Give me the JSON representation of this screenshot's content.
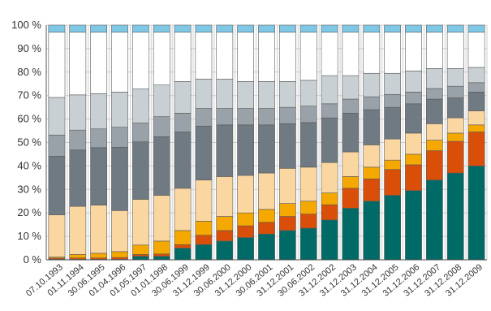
{
  "chart_data": {
    "type": "bar",
    "stacked": true,
    "ylim": [
      0,
      100
    ],
    "y_ticks": [
      "0 %",
      "10 %",
      "20 %",
      "30 %",
      "40 %",
      "50 %",
      "60 %",
      "70 %",
      "80 %",
      "90 %",
      "100 %"
    ],
    "grid": true,
    "categories": [
      "07.10.1993",
      "01.11.1994",
      "30.06.1995",
      "01.04.1996",
      "01.05.1997",
      "01.01.1998",
      "30.06.1999",
      "31.12.1999",
      "30.06.2000",
      "31.12.2000",
      "30.06.2001",
      "31.12.2001",
      "30.06.2002",
      "31.12.2002",
      "31.12.2003",
      "31.12.2004",
      "31.12.2005",
      "31.12.2006",
      "31.12.2007",
      "31.12.2008",
      "31.12.2009"
    ],
    "colors": [
      "#006b66",
      "#d94f0a",
      "#f5a800",
      "#fad7a0",
      "#707a82",
      "#9aa2a9",
      "#c9d0d4",
      "#ffffff",
      "#7ec8e6"
    ],
    "series": [
      {
        "values": [
          0.2,
          0.2,
          0.2,
          0.2,
          1.5,
          1.5,
          5,
          6.5,
          8,
          9.5,
          11,
          12.5,
          13.5,
          17,
          22,
          25,
          27.5,
          29.5,
          34,
          37,
          40
        ]
      },
      {
        "values": [
          0.5,
          0.6,
          0.6,
          0.8,
          0.8,
          1,
          1.5,
          4,
          4.5,
          5,
          5,
          6,
          6,
          6.5,
          8.5,
          9.5,
          11,
          11,
          12.5,
          13.5,
          14.5
        ]
      },
      {
        "values": [
          0.5,
          1.5,
          2,
          2.5,
          4,
          5.5,
          6,
          6,
          6,
          5.5,
          5.5,
          5.5,
          5.5,
          5,
          5,
          5,
          4,
          4.5,
          4.5,
          3.5,
          3
        ]
      },
      {
        "values": [
          18,
          20.5,
          20.5,
          17.5,
          19.5,
          19.5,
          18,
          17.5,
          17,
          16,
          15.5,
          15,
          14.5,
          13,
          10.5,
          9.5,
          9,
          9,
          7,
          6.5,
          6
        ]
      },
      {
        "values": [
          25,
          24,
          24.5,
          27,
          24.5,
          25,
          24,
          23,
          22,
          21.5,
          20.5,
          19,
          19,
          19,
          16.5,
          15,
          13.5,
          12.5,
          10.5,
          8.5,
          8
        ]
      },
      {
        "values": [
          9,
          8.5,
          8,
          8.5,
          8,
          8.5,
          8,
          7.5,
          7,
          7,
          7,
          7,
          7,
          6,
          6,
          5.5,
          5.5,
          5,
          4.5,
          5,
          4
        ]
      },
      {
        "values": [
          16,
          15,
          15,
          15,
          14.5,
          13.5,
          13.5,
          12.5,
          12.5,
          11.5,
          11.5,
          11,
          11,
          12,
          10,
          10,
          9,
          9,
          8.5,
          7.5,
          6.5
        ]
      },
      {
        "values": [
          27.8,
          26.7,
          26.2,
          25.5,
          24.2,
          22.5,
          21,
          20,
          20,
          21,
          21,
          21,
          20.5,
          18.5,
          18.5,
          17.5,
          17.5,
          16.5,
          15.5,
          15.5,
          15
        ]
      },
      {
        "values": [
          3,
          3,
          3,
          3,
          3,
          3,
          3,
          3,
          3,
          3,
          3,
          3,
          3,
          3,
          3,
          3,
          3,
          3,
          3,
          3,
          3
        ]
      }
    ]
  }
}
